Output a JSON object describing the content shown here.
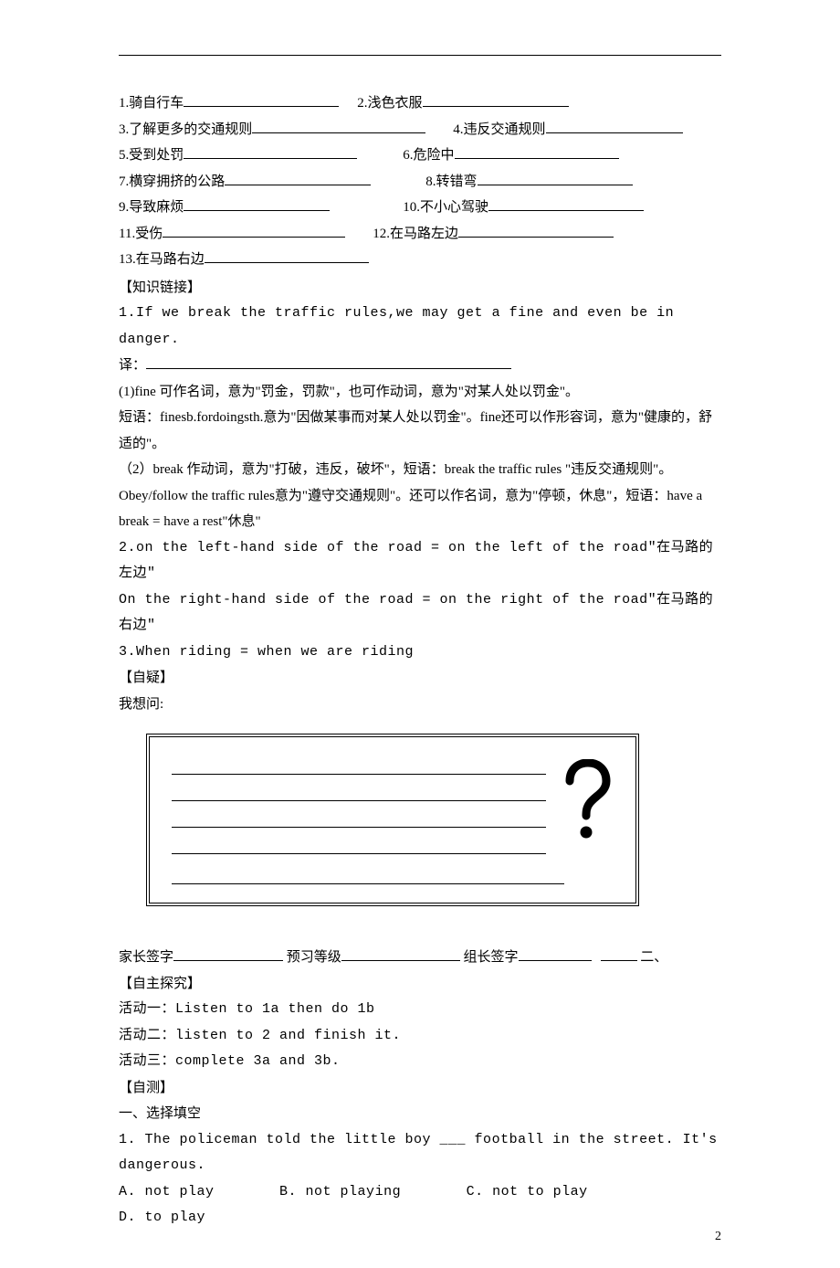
{
  "vocab_pairs": [
    {
      "l_num": "1.",
      "l_text": "骑自行车",
      "l_blank": 170,
      "gap": 20,
      "r_num": "2.",
      "r_text": "浅色衣服",
      "r_blank": 160
    },
    {
      "l_num": "3.",
      "l_text": "了解更多的交通规则",
      "l_blank": 190,
      "gap": 30,
      "r_num": "4.",
      "r_text": "违反交通规则",
      "r_blank": 150
    },
    {
      "l_num": "5.",
      "l_text": "受到处罚",
      "l_blank": 190,
      "gap": 50,
      "r_num": "6.",
      "r_text": "危险中",
      "r_blank": 180
    },
    {
      "l_num": "7.",
      "l_text": "横穿拥挤的公路",
      "l_blank": 160,
      "gap": 60,
      "r_num": "8.",
      "r_text": "转错弯",
      "r_blank": 170
    },
    {
      "l_num": "9.",
      "l_text": "导致麻烦",
      "l_blank": 160,
      "gap": 80,
      "r_num": "10.",
      "r_text": "不小心驾驶",
      "r_blank": 170
    },
    {
      "l_num": "11.",
      "l_text": "受伤",
      "l_blank": 200,
      "gap": 30,
      "r_num": "12.",
      "r_text": "在马路左边",
      "r_blank": 170
    },
    {
      "l_num": "13.",
      "l_text": "在马路右边",
      "l_blank": 180,
      "gap": 0,
      "r_num": "",
      "r_text": "",
      "r_blank": 0
    }
  ],
  "heading_knowledge": "【知识链接】",
  "k1_a": "1.If we break the traffic rules,we may get a fine and even be in danger.",
  "k1_trans_label": "译：",
  "k1_b": "(1)fine 可作名词，意为\"罚金，罚款\"，也可作动词，意为\"对某人处以罚金\"。",
  "k1_c": "短语：finesb.fordoingsth.意为\"因做某事而对某人处以罚金\"。fine还可以作形容词，意为\"健康的，舒适的\"。",
  "k1_d": "（2）break 作动词，意为\"打破，违反，破坏\"，短语：break the traffic rules \"违反交通规则\"。Obey/follow the traffic rules意为\"遵守交通规则\"。还可以作名词，意为\"停顿，休息\"，短语：have a break = have a rest\"休息\"",
  "k2": "2.on the left-hand side of the road = on the left of the road\"在马路的左边\"",
  "k2b": "On the right-hand side of the road = on the right of the road\"在马路的右边\"",
  "k3": "3.When riding = when we are riding",
  "heading_doubt": "【自疑】",
  "doubt_label": "我想问:",
  "sig_parent": "家长签字",
  "sig_preview": "预习等级",
  "sig_leader": "组长签字",
  "sig_tail": "二、",
  "heading_explore": "【自主探究】",
  "act1": "活动一：Listen to 1a then do 1b",
  "act2": "活动二：listen to 2 and finish it.",
  "act3": "活动三：complete 3a and 3b.",
  "heading_selftest": "【自测】",
  "test_section": "一、选择填空",
  "q1_a": "1. The policeman told the little boy ___ football in the street. It's dangerous.",
  "opt_a": "A. not play",
  "opt_b": "B. not playing",
  "opt_c": "C. not to play",
  "opt_d": "D. to play",
  "page_number": "2",
  "colors": {
    "text": "#000000",
    "background": "#ffffff",
    "accent": "#c0a000"
  }
}
